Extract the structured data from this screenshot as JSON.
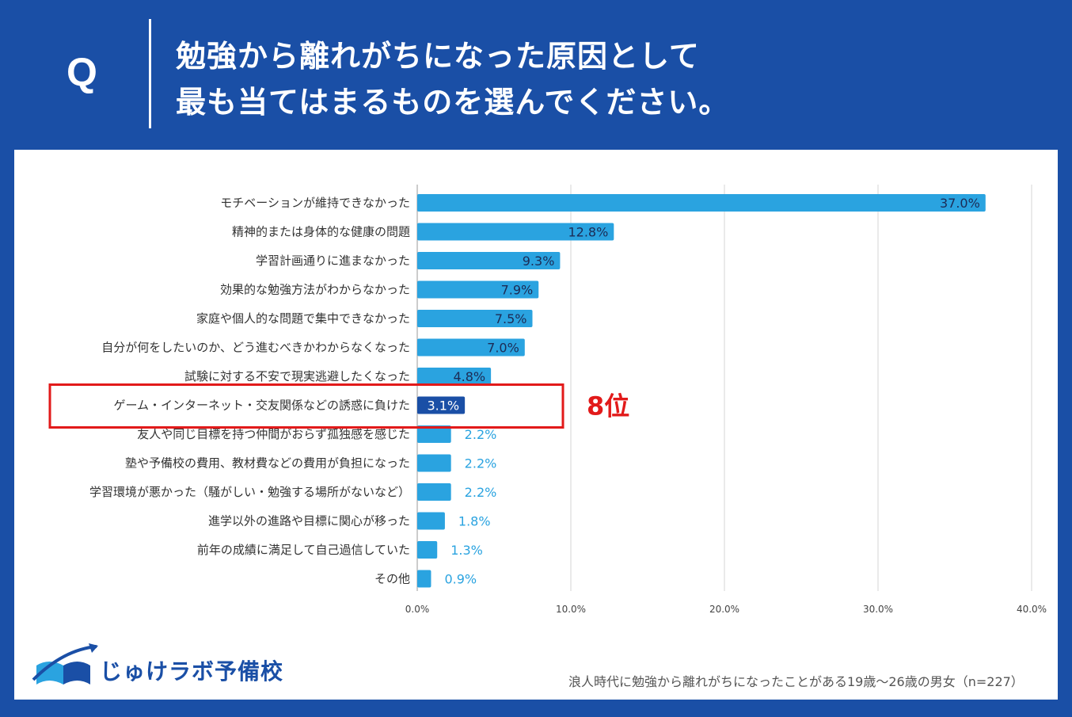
{
  "header": {
    "q_label": "Q",
    "line1": "勉強から離れがちになった原因として",
    "line2": "最も当てはまるものを選んでください。"
  },
  "chart_data": {
    "type": "bar",
    "orientation": "horizontal",
    "categories": [
      "モチベーションが維持できなかった",
      "精神的または身体的な健康の問題",
      "学習計画通りに進まなかった",
      "効果的な勉強方法がわからなかった",
      "家庭や個人的な問題で集中できなかった",
      "自分が何をしたいのか、どう進むべきかわからなくなった",
      "試験に対する不安で現実逃避したくなった",
      "ゲーム・インターネット・交友関係などの誘惑に負けた",
      "友人や同じ目標を持つ仲間がおらず孤独感を感じた",
      "塾や予備校の費用、教材費などの費用が負担になった",
      "学習環境が悪かった（騒がしい・勉強する場所がないなど）",
      "進学以外の進路や目標に関心が移った",
      "前年の成績に満足して自己過信していた",
      "その他"
    ],
    "values": [
      37.0,
      12.8,
      9.3,
      7.9,
      7.5,
      7.0,
      4.8,
      3.1,
      2.2,
      2.2,
      2.2,
      1.8,
      1.3,
      0.9
    ],
    "value_labels": [
      "37.0%",
      "12.8%",
      "9.3%",
      "7.9%",
      "7.5%",
      "7.0%",
      "4.8%",
      "3.1%",
      "2.2%",
      "2.2%",
      "2.2%",
      "1.8%",
      "1.3%",
      "0.9%"
    ],
    "xlim": [
      0,
      40
    ],
    "xticks": [
      "0.0%",
      "10.0%",
      "20.0%",
      "30.0%",
      "40.0%"
    ],
    "highlight_index": 7,
    "highlight_label": "8位",
    "colors": {
      "bar": "#2aa3e0",
      "highlight_bar": "#1a4fa6",
      "highlight_box": "#e21a1a",
      "grid": "#d6d6d6"
    }
  },
  "footer": {
    "logo_text": "じゅけラボ予備校",
    "source": "浪人時代に勉強から離れがちになったことがある19歳〜26歳の男女（n=227）"
  }
}
